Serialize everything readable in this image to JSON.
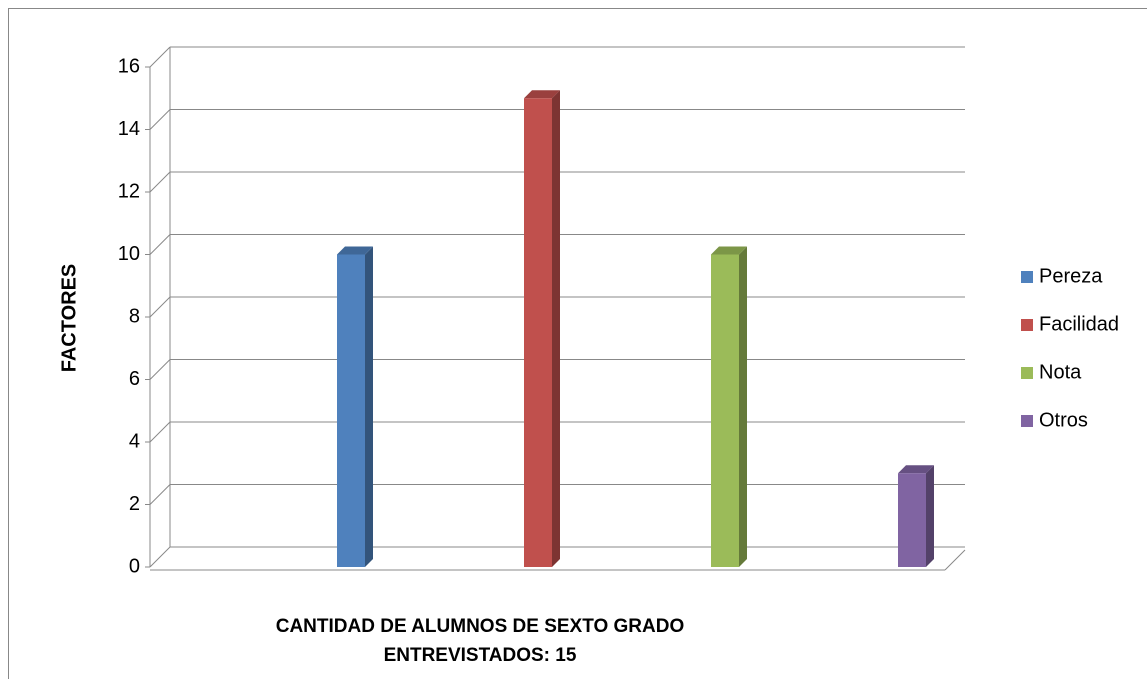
{
  "chart_data": {
    "type": "bar3d",
    "ylabel": "FACTORES",
    "xlabel": "CANTIDAD DE ALUMNOS DE SEXTO GRADO ENTREVISTADOS: 15",
    "categories": [
      null
    ],
    "series": [
      {
        "name": "Pereza",
        "color": "#4f81bd",
        "values": [
          10
        ]
      },
      {
        "name": "Facilidad",
        "color": "#c0504d",
        "values": [
          15
        ]
      },
      {
        "name": "Nota",
        "color": "#9bbb59",
        "values": [
          10
        ]
      },
      {
        "name": "Otros",
        "color": "#8064a2",
        "values": [
          3
        ]
      }
    ],
    "ylim": [
      0,
      16
    ],
    "yticks": [
      0,
      2,
      4,
      6,
      8,
      10,
      12,
      14,
      16
    ],
    "grid": true,
    "legend": "right"
  }
}
